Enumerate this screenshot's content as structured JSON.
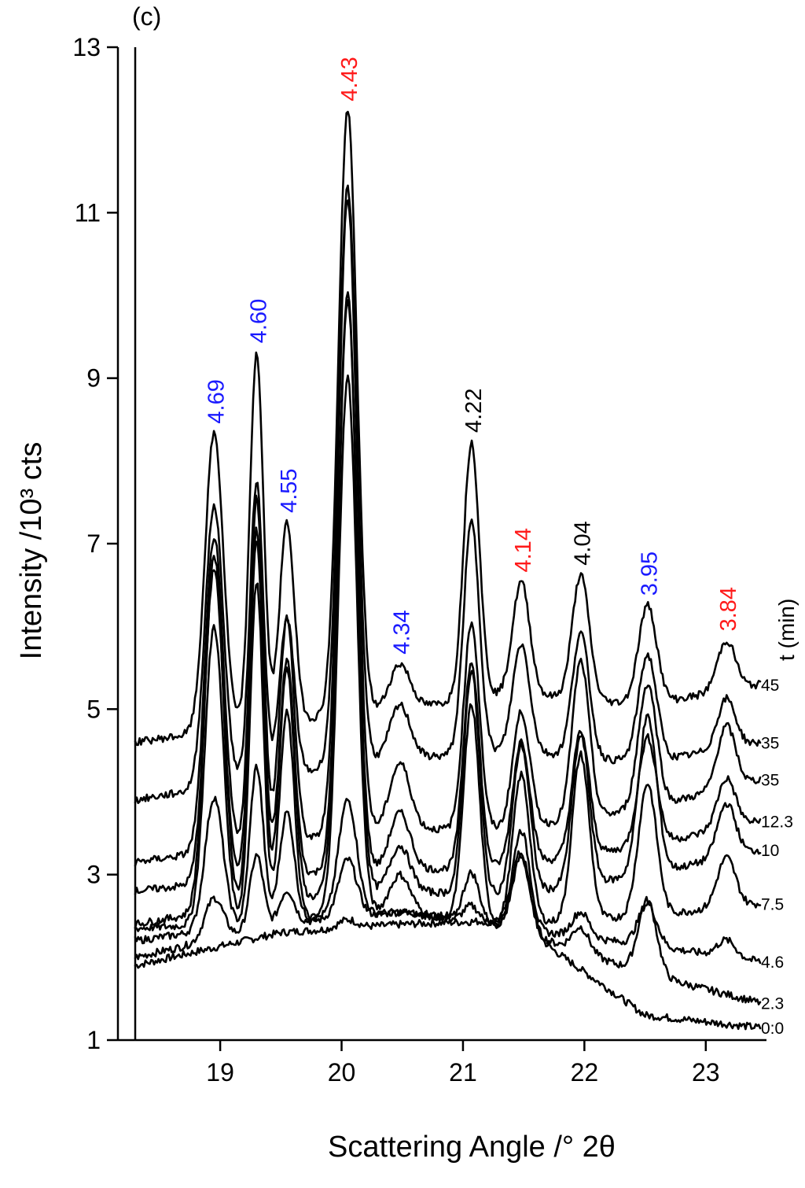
{
  "panel_label": "(c)",
  "legend_title": "t (min)",
  "colors": {
    "blue": "#1a1aff",
    "red": "#ff1a1a",
    "black": "#000000"
  },
  "chart_data": {
    "type": "line",
    "xlabel": "Scattering Angle  /° 2θ",
    "ylabel": "Intensity  /10³ cts",
    "xlim": [
      18.3,
      23.5
    ],
    "ylim": [
      1,
      13
    ],
    "x_ticks": [
      "19",
      "20",
      "21",
      "22",
      "23"
    ],
    "y_ticks": [
      "1",
      "3",
      "5",
      "7",
      "9",
      "11",
      "13"
    ],
    "peaks": [
      {
        "label": "4.69",
        "x": 18.95,
        "color": "blue"
      },
      {
        "label": "4.60",
        "x": 19.3,
        "color": "blue"
      },
      {
        "label": "4.55",
        "x": 19.55,
        "color": "blue"
      },
      {
        "label": "4.43",
        "x": 20.05,
        "color": "red"
      },
      {
        "label": "4.34",
        "x": 20.48,
        "color": "blue"
      },
      {
        "label": "4.22",
        "x": 21.07,
        "color": "black"
      },
      {
        "label": "4.14",
        "x": 21.48,
        "color": "red"
      },
      {
        "label": "4.04",
        "x": 21.97,
        "color": "black"
      },
      {
        "label": "3.95",
        "x": 22.52,
        "color": "blue"
      },
      {
        "label": "3.84",
        "x": 23.17,
        "color": "red"
      }
    ],
    "series": [
      {
        "name": "0:0",
        "baseline": [
          1.9,
          2.3,
          2.4,
          2.45,
          1.3,
          1.15
        ],
        "heights": [
          0.0,
          0.0,
          0.0,
          0.1,
          0.0,
          0.0,
          0.9,
          0.0,
          0.0,
          0.0
        ]
      },
      {
        "name": "2.3",
        "baseline": [
          2.0,
          2.4,
          2.55,
          2.35,
          1.8,
          1.45
        ],
        "heights": [
          0.5,
          0.9,
          0.4,
          0.7,
          0.0,
          0.2,
          0.9,
          0.3,
          0.9,
          0.0
        ]
      },
      {
        "name": "4.6",
        "baseline": [
          2.2,
          2.45,
          2.55,
          2.35,
          2.15,
          1.95
        ],
        "heights": [
          1.6,
          1.9,
          1.3,
          1.4,
          0.0,
          0.6,
          1.2,
          0.3,
          0.5,
          0.2
        ]
      },
      {
        "name": "7.5",
        "baseline": [
          2.35,
          2.45,
          2.55,
          2.4,
          2.5,
          2.65
        ],
        "heights": [
          3.6,
          4.1,
          2.5,
          6.5,
          0.45,
          2.6,
          1.8,
          2.0,
          1.6,
          0.6
        ]
      },
      {
        "name": "10",
        "baseline": [
          2.4,
          2.7,
          2.8,
          2.75,
          3.0,
          3.3
        ],
        "heights": [
          4.3,
          4.4,
          2.8,
          7.2,
          0.55,
          2.7,
          1.8,
          1.8,
          1.9,
          0.65
        ]
      },
      {
        "name": "12.3",
        "baseline": [
          2.8,
          3.0,
          3.05,
          3.1,
          3.35,
          3.65
        ],
        "heights": [
          3.8,
          4.2,
          2.6,
          7.0,
          0.7,
          2.5,
          1.5,
          1.5,
          1.3,
          0.6
        ]
      },
      {
        "name": "35",
        "baseline": [
          3.15,
          3.4,
          3.55,
          3.55,
          3.8,
          4.15
        ],
        "heights": [
          3.8,
          4.2,
          2.7,
          7.7,
          0.8,
          2.5,
          1.4,
          1.9,
          1.5,
          0.75
        ]
      },
      {
        "name": "35",
        "baseline": [
          3.9,
          4.2,
          4.4,
          4.5,
          4.35,
          4.6
        ],
        "heights": [
          3.4,
          3.6,
          1.9,
          7.0,
          0.65,
          2.8,
          1.3,
          1.5,
          1.3,
          0.6
        ]
      },
      {
        "name": "45",
        "baseline": [
          4.6,
          4.85,
          5.0,
          5.2,
          5.05,
          5.3
        ],
        "heights": [
          3.6,
          4.5,
          2.4,
          7.3,
          0.55,
          3.1,
          1.35,
          1.5,
          1.2,
          0.6
        ]
      }
    ]
  }
}
